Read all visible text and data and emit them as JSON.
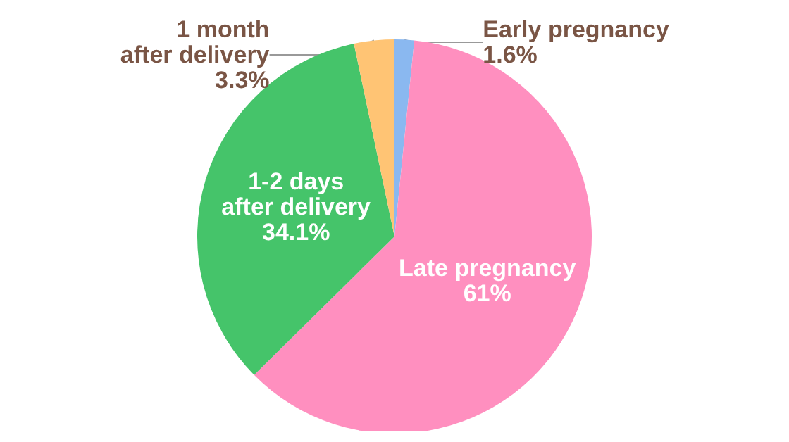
{
  "chart_data": {
    "type": "pie",
    "categories": [
      "Early pregnancy",
      "Late pregnancy",
      "1-2 days\nafter delivery",
      "1 month\nafter delivery"
    ],
    "values": [
      1.6,
      61,
      34.1,
      3.3
    ],
    "colors": [
      "#8ab8f0",
      "#ff8fbf",
      "#45c46a",
      "#ffc474"
    ],
    "value_labels": [
      "1.6%",
      "61%",
      "34.1%",
      "3.3%"
    ],
    "legend": false
  }
}
